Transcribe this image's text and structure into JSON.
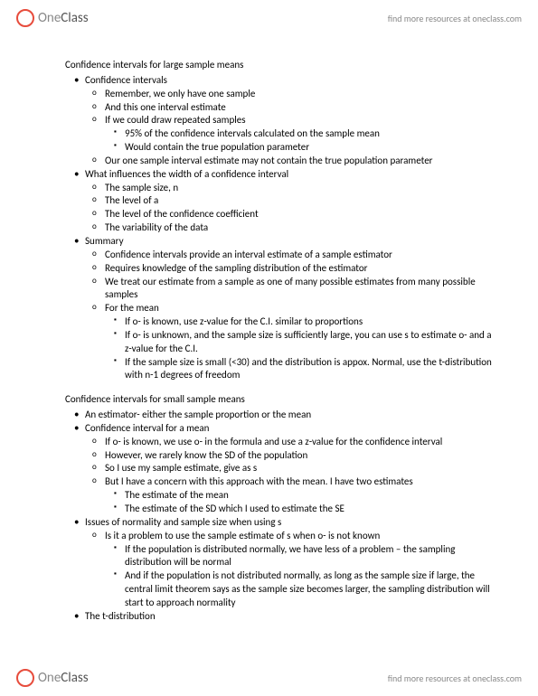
{
  "brand": {
    "one": "One",
    "class": "Class",
    "tagline": "find more resources at oneclass.com"
  },
  "doc": {
    "section1": {
      "title": "Confidence intervals for large sample means",
      "b1": {
        "h": "Confidence intervals",
        "i1": "Remember, we only have one sample",
        "i2": "And this one interval estimate",
        "i3": "If we could draw repeated samples",
        "i3a": "95% of the confidence intervals calculated on the sample mean",
        "i3b": "Would contain the true population parameter",
        "i4": "Our one sample interval estimate may not contain the true population parameter"
      },
      "b2": {
        "h": "What influences the width of a confidence interval",
        "i1": "The sample size, n",
        "i2": "The level of a",
        "i3": "The level of the confidence coefficient",
        "i4": "The variability of the data"
      },
      "b3": {
        "h": "Summary",
        "i1": "Confidence intervals provide an interval estimate of a sample estimator",
        "i2": "Requires knowledge of the sampling distribution of the estimator",
        "i3": "We treat our estimate from a sample as one of many possible estimates from many possible samples",
        "i4": "For the mean",
        "i4a": "If o- is known, use z-value for the C.I. similar to proportions",
        "i4b": "If o- is unknown, and the sample size is sufficiently large, you can use s to estimate o- and a z-value for the C.I.",
        "i4c": "If the sample size is small (<30) and the distribution is appox. Normal, use the t-distribution with n-1 degrees of freedom"
      }
    },
    "section2": {
      "title": "Confidence intervals for small sample means",
      "b1": "An estimator- either the sample proportion or the mean",
      "b2": {
        "h": "Confidence interval for a mean",
        "i1": "If o- is known, we use o- in the formula and use a z-value for the confidence interval",
        "i2": "However, we rarely know the SD of the population",
        "i3": "So I use my sample estimate, give as s",
        "i4": "But I have a concern with this approach with the mean. I have two estimates",
        "i4a": "The estimate of the mean",
        "i4b": "The estimate of the SD which I used to estimate the SE"
      },
      "b3": {
        "h": "Issues of normality and sample size when using s",
        "i1": "Is it a problem to use the sample estimate of s when o- is not known",
        "i1a": "If the population is distributed normally, we have less of a problem – the sampling distribution will be normal",
        "i1b": "And if the population is not distributed normally, as long as the sample size if large, the central limit theorem says as the sample size becomes larger, the sampling distribution will start to approach normality"
      },
      "b4": "The t-distribution"
    }
  }
}
